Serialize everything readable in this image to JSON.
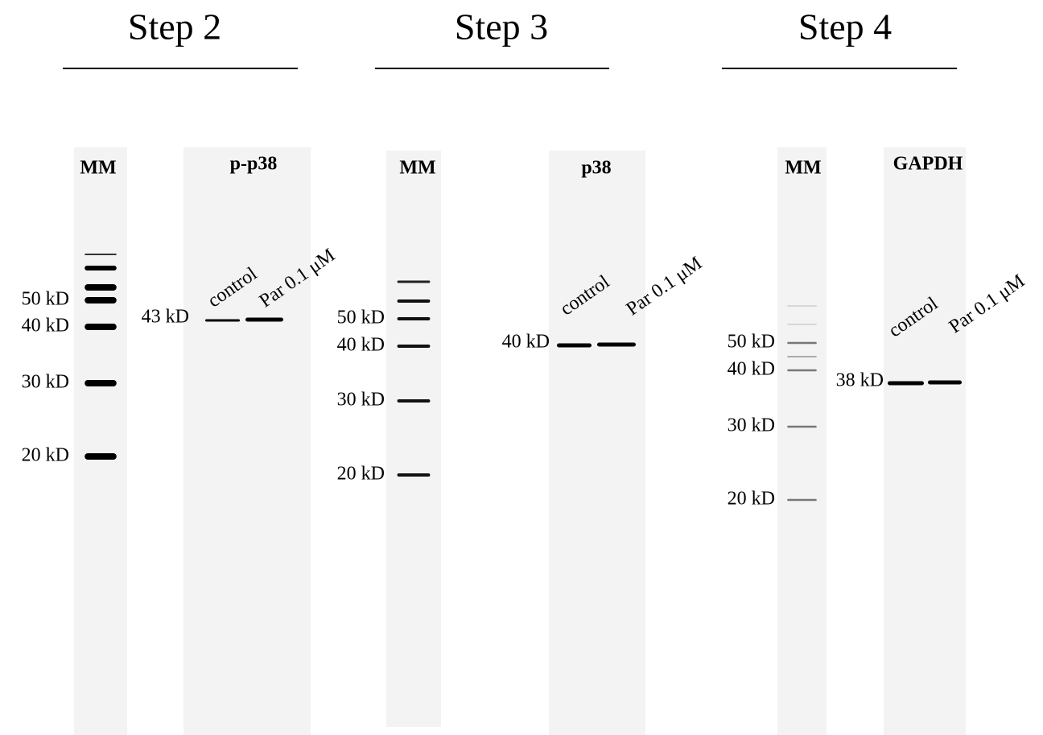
{
  "panels": [
    {
      "step": "Step 2",
      "mm_label": "MM",
      "target": "p-p38",
      "markers": [
        "50 kD",
        "40 kD",
        "30 kD",
        "20 kD"
      ],
      "band_label": "43 kD",
      "lanes": [
        "control",
        "Par 0.1 μM"
      ]
    },
    {
      "step": "Step 3",
      "mm_label": "MM",
      "target": "p38",
      "markers": [
        "50 kD",
        "40 kD",
        "30 kD",
        "20 kD"
      ],
      "band_label": "40 kD",
      "lanes": [
        "control",
        "Par 0.1 μM"
      ]
    },
    {
      "step": "Step 4",
      "mm_label": "MM",
      "target": "GAPDH",
      "markers": [
        "50 kD",
        "40 kD",
        "30 kD",
        "20 kD"
      ],
      "band_label": "38 kD",
      "lanes": [
        "control",
        "Par 0.1 μM"
      ]
    }
  ]
}
